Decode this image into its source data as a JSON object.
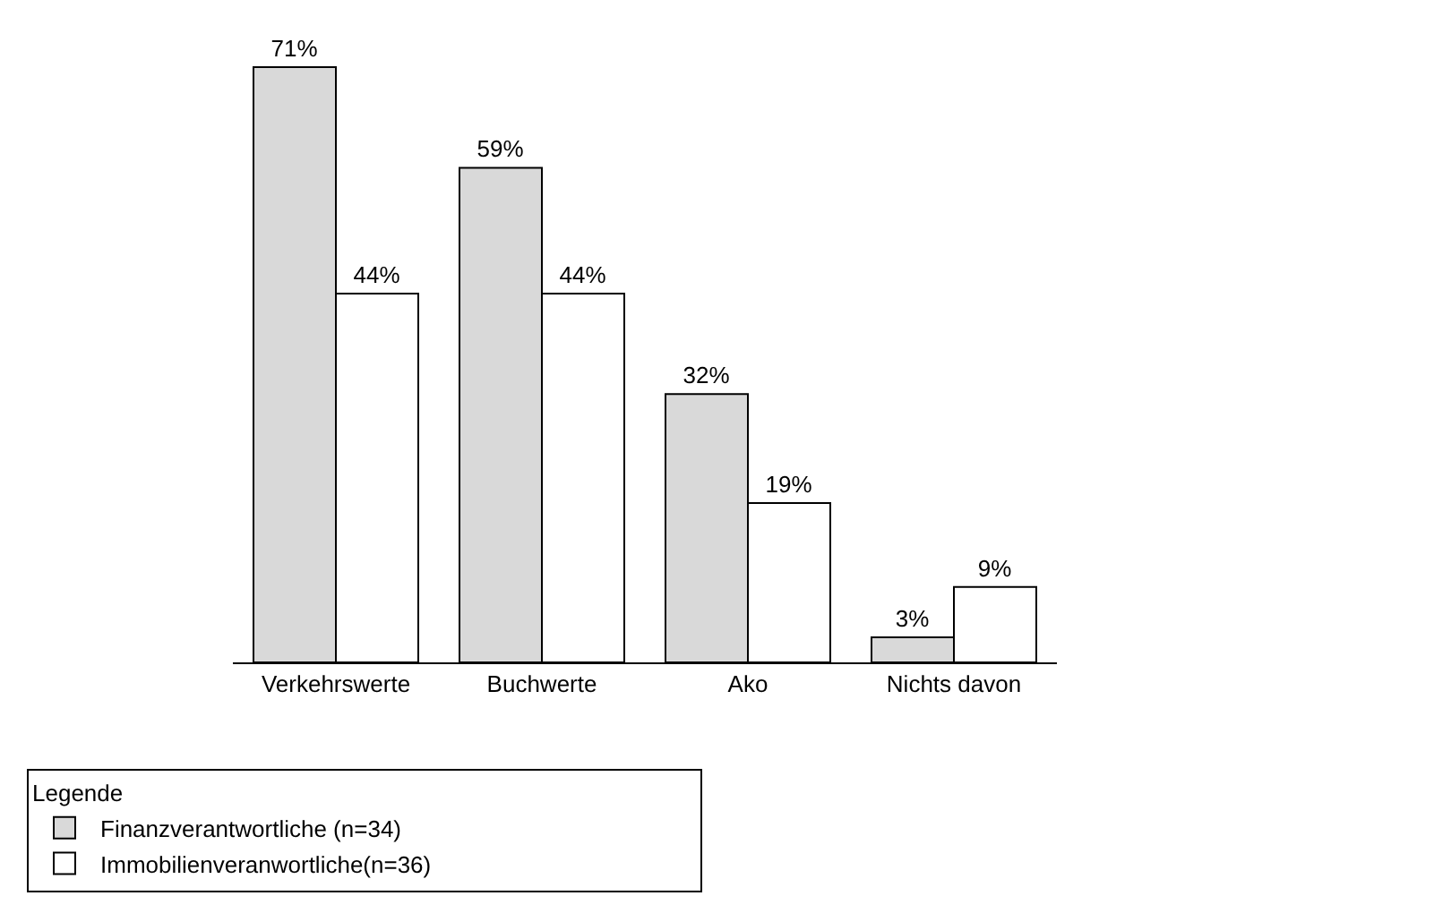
{
  "chart_data": {
    "type": "bar",
    "categories": [
      "Verkehrswerte",
      "Buchwerte",
      "Ako",
      "Nichts davon"
    ],
    "series": [
      {
        "name": "Finanzverantwortliche (n=34)",
        "color": "#d9d9d9",
        "values": [
          71,
          59,
          32,
          3
        ],
        "value_labels": [
          "71%",
          "59%",
          "32%",
          "3%"
        ]
      },
      {
        "name": "Immobilienveranwortliche(n=36)",
        "color": "#ffffff",
        "values": [
          44,
          44,
          19,
          9
        ],
        "value_labels": [
          "44%",
          "44%",
          "19%",
          "9%"
        ]
      }
    ],
    "legend": "bottom",
    "legend_title": "Legende"
  }
}
